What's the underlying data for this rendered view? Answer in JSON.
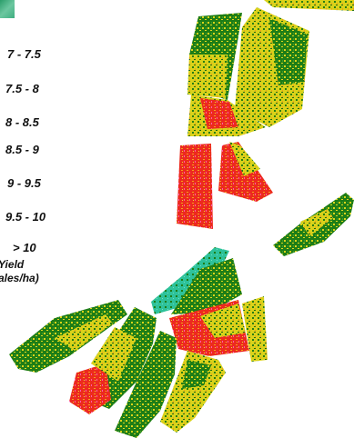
{
  "legend": {
    "classes": [
      {
        "label": "7 - 7.5",
        "color": "#2b9d54"
      },
      {
        "label": "7.5 - 8",
        "color": "#0f7a0f"
      },
      {
        "label": "8 - 8.5",
        "color": "#4a8a1a"
      },
      {
        "label": "8.5 - 9",
        "color": "#d8d818"
      },
      {
        "label": "9 - 9.5",
        "color": "#f09a1a"
      },
      {
        "label": "9.5 - 10",
        "color": "#ee2a1e"
      },
      {
        "label": "> 10",
        "color": "#ff55aa"
      }
    ],
    "title_line1": "Yield",
    "title_line2": "ales/ha)"
  }
}
